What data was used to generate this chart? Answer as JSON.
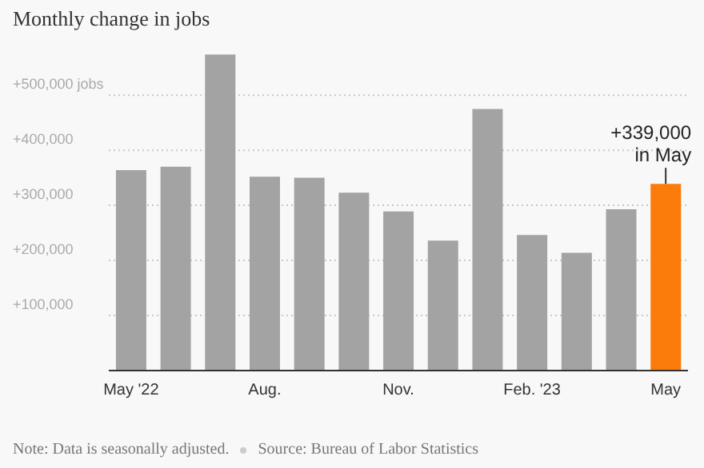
{
  "chart_data": {
    "type": "bar",
    "title": "Monthly change in jobs",
    "categories": [
      "May '22",
      null,
      null,
      "Aug.",
      null,
      null,
      "Nov.",
      null,
      null,
      "Feb. '23",
      null,
      null,
      "May"
    ],
    "values": [
      364000,
      370000,
      574000,
      352000,
      350000,
      323000,
      289000,
      236000,
      475000,
      246000,
      214000,
      293000,
      339000
    ],
    "colors": [
      "#a3a3a3",
      "#a3a3a3",
      "#a3a3a3",
      "#a3a3a3",
      "#a3a3a3",
      "#a3a3a3",
      "#a3a3a3",
      "#a3a3a3",
      "#a3a3a3",
      "#a3a3a3",
      "#a3a3a3",
      "#a3a3a3",
      "#fb7c0a"
    ],
    "ylim": [
      0,
      580000
    ],
    "yticks": [
      {
        "value": 100000,
        "label": "+100,000"
      },
      {
        "value": 200000,
        "label": "+200,000"
      },
      {
        "value": 300000,
        "label": "+300,000"
      },
      {
        "value": 400000,
        "label": "+400,000"
      },
      {
        "value": 500000,
        "label": "+500,000 jobs"
      }
    ],
    "grid": "y",
    "legend": false,
    "annotations": [
      {
        "text": "+339,000\nin May",
        "x": "May",
        "y": 339000
      },
      "Note: Data is seasonally adjusted.",
      "Source: Bureau of Labor Statistics"
    ]
  }
}
